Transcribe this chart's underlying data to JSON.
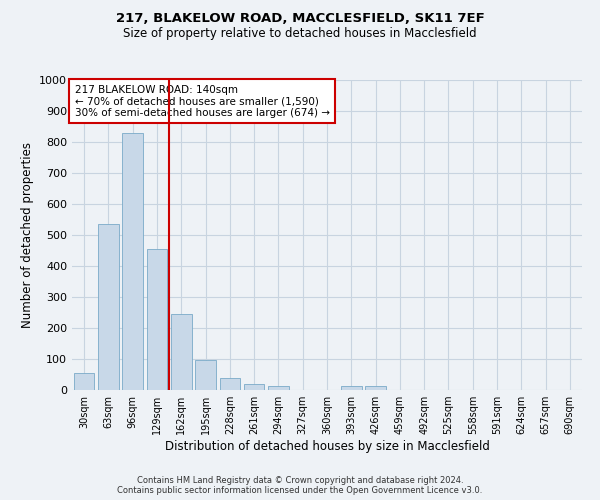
{
  "title1": "217, BLAKELOW ROAD, MACCLESFIELD, SK11 7EF",
  "title2": "Size of property relative to detached houses in Macclesfield",
  "xlabel": "Distribution of detached houses by size in Macclesfield",
  "ylabel": "Number of detached properties",
  "categories": [
    "30sqm",
    "63sqm",
    "96sqm",
    "129sqm",
    "162sqm",
    "195sqm",
    "228sqm",
    "261sqm",
    "294sqm",
    "327sqm",
    "360sqm",
    "393sqm",
    "426sqm",
    "459sqm",
    "492sqm",
    "525sqm",
    "558sqm",
    "591sqm",
    "624sqm",
    "657sqm",
    "690sqm"
  ],
  "values": [
    55,
    535,
    830,
    455,
    245,
    98,
    38,
    18,
    12,
    0,
    0,
    12,
    12,
    0,
    0,
    0,
    0,
    0,
    0,
    0,
    0
  ],
  "bar_color": "#c8d8e8",
  "bar_edge_color": "#7aaac8",
  "grid_color": "#c8d4e0",
  "background_color": "#eef2f6",
  "vline_x": 3.5,
  "vline_color": "#cc0000",
  "annotation_lines": [
    "217 BLAKELOW ROAD: 140sqm",
    "← 70% of detached houses are smaller (1,590)",
    "30% of semi-detached houses are larger (674) →"
  ],
  "annotation_box_color": "#ffffff",
  "annotation_box_edge": "#cc0000",
  "ylim": [
    0,
    1000
  ],
  "yticks": [
    0,
    100,
    200,
    300,
    400,
    500,
    600,
    700,
    800,
    900,
    1000
  ],
  "footer1": "Contains HM Land Registry data © Crown copyright and database right 2024.",
  "footer2": "Contains public sector information licensed under the Open Government Licence v3.0."
}
